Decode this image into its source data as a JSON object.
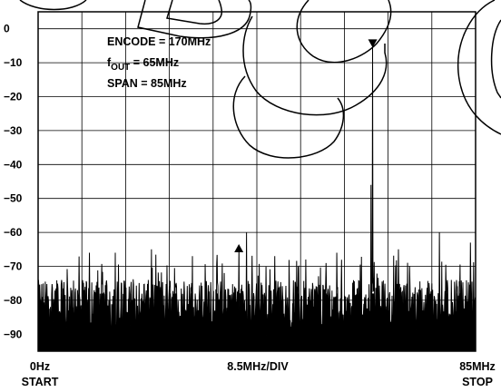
{
  "chart_data": {
    "type": "line",
    "y_ticks": [
      0,
      -10,
      -20,
      -30,
      -40,
      -50,
      -60,
      -70,
      -80,
      -90
    ],
    "ylim": [
      -95,
      5
    ],
    "xlim": [
      0,
      85
    ],
    "x_divisions": 10,
    "grid": true,
    "annotations": {
      "encode": "ENCODE = 170MHz",
      "fout_main": "f",
      "fout_sub": "OUT",
      "fout_rest": " = 65MHz",
      "span": "SPAN = 85MHz"
    },
    "x_labels": {
      "left_top": "0Hz",
      "left_bottom": "START",
      "center": "8.5MHz/DIV",
      "right_top": "85MHz",
      "right_bottom": "STOP"
    },
    "markers": [
      {
        "x": 65,
        "y": -5,
        "direction": "down"
      },
      {
        "x": 39,
        "y": -64,
        "direction": "up"
      }
    ],
    "series": [
      {
        "peaks": [
          {
            "x": 65,
            "y": -5
          },
          {
            "x": 64.7,
            "y": -46
          },
          {
            "x": 39,
            "y": -64
          },
          {
            "x": 40.5,
            "y": -60
          },
          {
            "x": 22,
            "y": -65
          },
          {
            "x": 78,
            "y": -60
          },
          {
            "x": 84,
            "y": -63
          },
          {
            "x": 52,
            "y": -68
          },
          {
            "x": 10,
            "y": -66
          },
          {
            "x": 30,
            "y": -67
          },
          {
            "x": 58,
            "y": -66
          },
          {
            "x": 70,
            "y": -65
          },
          {
            "x": 46,
            "y": -67
          },
          {
            "x": 15,
            "y": -66
          }
        ],
        "noise_floor": -82,
        "noise_band": [
          -91,
          -66
        ]
      }
    ]
  }
}
